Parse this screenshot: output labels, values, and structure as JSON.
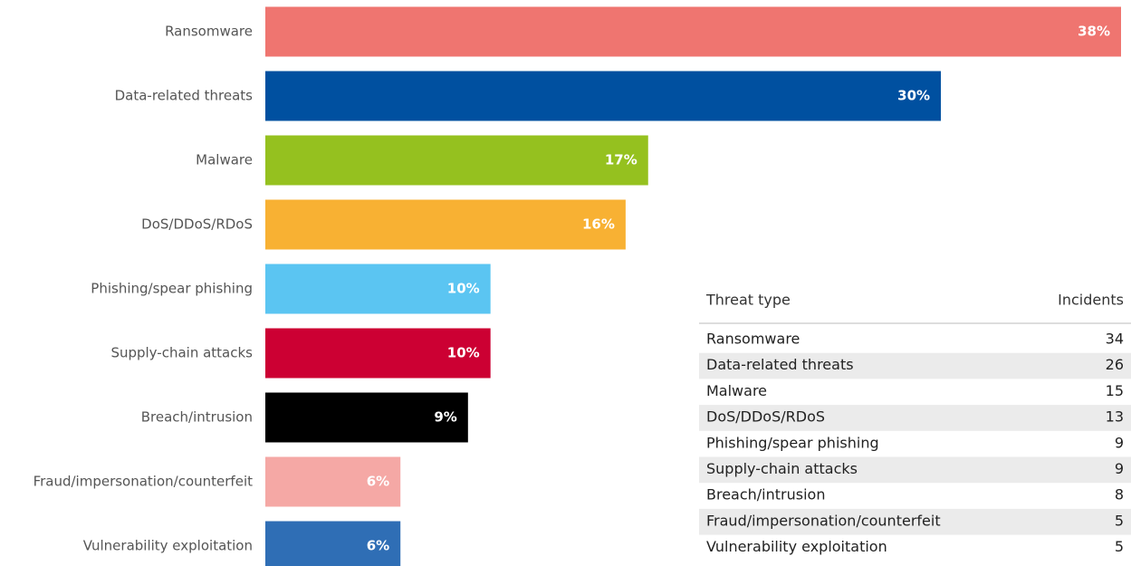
{
  "chart_data": {
    "type": "bar",
    "orientation": "horizontal",
    "categories": [
      "Ransomware",
      "Data-related threats",
      "Malware",
      "DoS/DDoS/RDoS",
      "Phishing/spear phishing",
      "Supply-chain attacks",
      "Breach/intrusion",
      "Fraud/impersonation/counterfeit",
      "Vulnerability exploitation"
    ],
    "values": [
      38,
      30,
      17,
      16,
      10,
      10,
      9,
      6,
      6
    ],
    "value_labels": [
      "38%",
      "30%",
      "17%",
      "16%",
      "10%",
      "10%",
      "9%",
      "6%",
      "6%"
    ],
    "colors": [
      "#ef7570",
      "#0050a0",
      "#95c11f",
      "#f8b133",
      "#5bc5f2",
      "#cc0033",
      "#000000",
      "#f5a8a5",
      "#2f6eb5"
    ]
  },
  "table": {
    "columns": [
      "Threat type",
      "Incidents"
    ],
    "rows": [
      [
        "Ransomware",
        "34"
      ],
      [
        "Data-related threats",
        "26"
      ],
      [
        "Malware",
        "15"
      ],
      [
        "DoS/DDoS/RDoS",
        "13"
      ],
      [
        "Phishing/spear phishing",
        "9"
      ],
      [
        "Supply-chain attacks",
        "9"
      ],
      [
        "Breach/intrusion",
        "8"
      ],
      [
        "Fraud/impersonation/counterfeit",
        "5"
      ],
      [
        "Vulnerability exploitation",
        "5"
      ]
    ]
  }
}
